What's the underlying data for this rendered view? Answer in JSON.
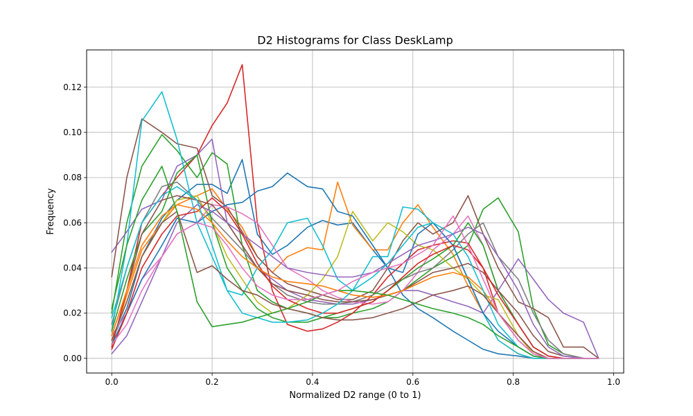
{
  "chart_data": {
    "type": "line",
    "title": "D2 Histograms for Class DeskLamp",
    "xlabel": "Normalized D2 range (0 to 1)",
    "ylabel": "Frequency",
    "xlim": [
      -0.05,
      1.02
    ],
    "ylim": [
      -0.0065,
      0.1365
    ],
    "grid": true,
    "x_ticks": [
      0.0,
      0.2,
      0.4,
      0.6,
      0.8,
      1.0
    ],
    "x_tick_labels": [
      "0.0",
      "0.2",
      "0.4",
      "0.6",
      "0.8",
      "1.0"
    ],
    "y_ticks": [
      0.0,
      0.02,
      0.04,
      0.06,
      0.08,
      0.1,
      0.12
    ],
    "y_tick_labels": [
      "0.00",
      "0.02",
      "0.04",
      "0.06",
      "0.08",
      "0.10",
      "0.12"
    ],
    "x": [
      0.0,
      0.03,
      0.06,
      0.1,
      0.13,
      0.17,
      0.2,
      0.23,
      0.26,
      0.29,
      0.32,
      0.35,
      0.39,
      0.42,
      0.45,
      0.48,
      0.52,
      0.55,
      0.58,
      0.61,
      0.64,
      0.68,
      0.71,
      0.74,
      0.77,
      0.81,
      0.84,
      0.87,
      0.9,
      0.94,
      0.97
    ],
    "series": [
      {
        "color": "#1f77b4",
        "values": [
          0.008,
          0.022,
          0.045,
          0.062,
          0.07,
          0.077,
          0.077,
          0.073,
          0.088,
          0.055,
          0.046,
          0.05,
          0.058,
          0.061,
          0.059,
          0.06,
          0.048,
          0.04,
          0.028,
          0.022,
          0.018,
          0.012,
          0.008,
          0.004,
          0.002,
          0.001,
          0.0,
          0.0,
          0.0,
          0.0,
          0.0
        ]
      },
      {
        "color": "#ff7f0e",
        "values": [
          0.006,
          0.028,
          0.048,
          0.06,
          0.068,
          0.072,
          0.075,
          0.066,
          0.058,
          0.045,
          0.038,
          0.045,
          0.049,
          0.048,
          0.078,
          0.059,
          0.048,
          0.048,
          0.06,
          0.068,
          0.058,
          0.046,
          0.032,
          0.02,
          0.008,
          0.002,
          0.0,
          0.0,
          0.0,
          0.0,
          0.0
        ]
      },
      {
        "color": "#2ca02c",
        "values": [
          0.02,
          0.06,
          0.085,
          0.099,
          0.092,
          0.08,
          0.091,
          0.086,
          0.05,
          0.03,
          0.025,
          0.022,
          0.02,
          0.018,
          0.018,
          0.02,
          0.022,
          0.025,
          0.03,
          0.035,
          0.04,
          0.045,
          0.05,
          0.066,
          0.071,
          0.056,
          0.022,
          0.006,
          0.002,
          0.0,
          0.0
        ]
      },
      {
        "color": "#d62728",
        "values": [
          0.005,
          0.03,
          0.06,
          0.072,
          0.08,
          0.09,
          0.103,
          0.113,
          0.13,
          0.06,
          0.03,
          0.015,
          0.012,
          0.013,
          0.016,
          0.02,
          0.028,
          0.036,
          0.042,
          0.048,
          0.05,
          0.052,
          0.051,
          0.04,
          0.02,
          0.008,
          0.002,
          0.0,
          0.0,
          0.0,
          0.0
        ]
      },
      {
        "color": "#9467bd",
        "values": [
          0.047,
          0.056,
          0.066,
          0.07,
          0.085,
          0.09,
          0.097,
          0.06,
          0.05,
          0.04,
          0.035,
          0.03,
          0.026,
          0.025,
          0.024,
          0.024,
          0.026,
          0.028,
          0.03,
          0.03,
          0.028,
          0.025,
          0.023,
          0.02,
          0.03,
          0.044,
          0.035,
          0.026,
          0.02,
          0.016,
          0.0
        ]
      },
      {
        "color": "#8c564b",
        "values": [
          0.036,
          0.08,
          0.106,
          0.1,
          0.095,
          0.093,
          0.072,
          0.067,
          0.056,
          0.045,
          0.038,
          0.033,
          0.03,
          0.028,
          0.026,
          0.026,
          0.03,
          0.04,
          0.052,
          0.06,
          0.055,
          0.06,
          0.072,
          0.055,
          0.04,
          0.025,
          0.022,
          0.018,
          0.005,
          0.005,
          0.0
        ]
      },
      {
        "color": "#e377c2",
        "values": [
          0.01,
          0.02,
          0.035,
          0.045,
          0.055,
          0.06,
          0.068,
          0.067,
          0.064,
          0.06,
          0.05,
          0.04,
          0.035,
          0.03,
          0.027,
          0.025,
          0.024,
          0.025,
          0.03,
          0.038,
          0.048,
          0.055,
          0.063,
          0.05,
          0.03,
          0.015,
          0.005,
          0.001,
          0.0,
          0.0,
          0.0
        ]
      },
      {
        "color": "#7f7f7f",
        "values": [
          0.015,
          0.04,
          0.06,
          0.076,
          0.078,
          0.07,
          0.062,
          0.055,
          0.048,
          0.04,
          0.033,
          0.028,
          0.025,
          0.024,
          0.024,
          0.025,
          0.028,
          0.032,
          0.035,
          0.038,
          0.04,
          0.048,
          0.055,
          0.06,
          0.045,
          0.035,
          0.02,
          0.008,
          0.002,
          0.0,
          0.0
        ]
      },
      {
        "color": "#bcbd22",
        "values": [
          0.008,
          0.025,
          0.045,
          0.06,
          0.07,
          0.072,
          0.06,
          0.045,
          0.035,
          0.025,
          0.02,
          0.022,
          0.028,
          0.035,
          0.045,
          0.065,
          0.052,
          0.06,
          0.056,
          0.05,
          0.048,
          0.04,
          0.035,
          0.028,
          0.026,
          0.01,
          0.002,
          0.0,
          0.0,
          0.0,
          0.0
        ]
      },
      {
        "color": "#17becf",
        "values": [
          0.012,
          0.05,
          0.105,
          0.118,
          0.097,
          0.06,
          0.045,
          0.03,
          0.028,
          0.04,
          0.048,
          0.06,
          0.062,
          0.05,
          0.035,
          0.03,
          0.045,
          0.045,
          0.067,
          0.066,
          0.06,
          0.05,
          0.035,
          0.02,
          0.008,
          0.002,
          0.0,
          0.0,
          0.0,
          0.0,
          0.0
        ]
      },
      {
        "color": "#1f77b4",
        "values": [
          0.006,
          0.02,
          0.035,
          0.05,
          0.062,
          0.06,
          0.065,
          0.068,
          0.069,
          0.074,
          0.076,
          0.082,
          0.076,
          0.075,
          0.065,
          0.063,
          0.05,
          0.04,
          0.038,
          0.055,
          0.06,
          0.05,
          0.035,
          0.02,
          0.012,
          0.005,
          0.001,
          0.0,
          0.0,
          0.0,
          0.0
        ]
      },
      {
        "color": "#2ca02c",
        "values": [
          0.012,
          0.035,
          0.055,
          0.065,
          0.082,
          0.09,
          0.06,
          0.04,
          0.03,
          0.022,
          0.018,
          0.016,
          0.016,
          0.018,
          0.02,
          0.022,
          0.025,
          0.03,
          0.035,
          0.04,
          0.044,
          0.05,
          0.06,
          0.05,
          0.03,
          0.015,
          0.005,
          0.001,
          0.0,
          0.0,
          0.0
        ]
      },
      {
        "color": "#8c564b",
        "values": [
          0.01,
          0.03,
          0.055,
          0.07,
          0.072,
          0.07,
          0.068,
          0.06,
          0.05,
          0.04,
          0.033,
          0.03,
          0.028,
          0.026,
          0.025,
          0.025,
          0.026,
          0.028,
          0.03,
          0.034,
          0.038,
          0.04,
          0.042,
          0.038,
          0.03,
          0.02,
          0.01,
          0.003,
          0.001,
          0.0,
          0.0
        ]
      },
      {
        "color": "#9467bd",
        "values": [
          0.002,
          0.01,
          0.025,
          0.045,
          0.06,
          0.068,
          0.065,
          0.06,
          0.055,
          0.05,
          0.045,
          0.04,
          0.038,
          0.037,
          0.036,
          0.036,
          0.038,
          0.042,
          0.046,
          0.05,
          0.052,
          0.055,
          0.058,
          0.055,
          0.045,
          0.03,
          0.015,
          0.005,
          0.001,
          0.0,
          0.0
        ]
      },
      {
        "color": "#d62728",
        "values": [
          0.004,
          0.02,
          0.04,
          0.055,
          0.063,
          0.065,
          0.071,
          0.065,
          0.055,
          0.042,
          0.032,
          0.026,
          0.022,
          0.02,
          0.02,
          0.022,
          0.025,
          0.03,
          0.036,
          0.042,
          0.046,
          0.05,
          0.048,
          0.04,
          0.028,
          0.015,
          0.005,
          0.001,
          0.0,
          0.0,
          0.0
        ]
      },
      {
        "color": "#ff7f0e",
        "values": [
          0.01,
          0.03,
          0.05,
          0.063,
          0.068,
          0.066,
          0.06,
          0.052,
          0.045,
          0.04,
          0.036,
          0.034,
          0.033,
          0.032,
          0.03,
          0.028,
          0.027,
          0.028,
          0.03,
          0.033,
          0.036,
          0.038,
          0.036,
          0.03,
          0.02,
          0.01,
          0.003,
          0.0,
          0.0,
          0.0,
          0.0
        ]
      },
      {
        "color": "#17becf",
        "values": [
          0.018,
          0.04,
          0.06,
          0.072,
          0.076,
          0.07,
          0.05,
          0.03,
          0.02,
          0.018,
          0.016,
          0.016,
          0.017,
          0.02,
          0.024,
          0.03,
          0.036,
          0.042,
          0.05,
          0.058,
          0.06,
          0.055,
          0.045,
          0.03,
          0.015,
          0.005,
          0.001,
          0.0,
          0.0,
          0.0,
          0.0
        ]
      },
      {
        "color": "#8c564b",
        "values": [
          0.008,
          0.025,
          0.045,
          0.06,
          0.065,
          0.038,
          0.041,
          0.035,
          0.03,
          0.028,
          0.024,
          0.022,
          0.02,
          0.018,
          0.017,
          0.017,
          0.018,
          0.02,
          0.022,
          0.025,
          0.028,
          0.03,
          0.032,
          0.028,
          0.02,
          0.01,
          0.003,
          0.0,
          0.0,
          0.0,
          0.0
        ]
      },
      {
        "color": "#2ca02c",
        "values": [
          0.022,
          0.05,
          0.07,
          0.085,
          0.065,
          0.025,
          0.014,
          0.015,
          0.016,
          0.018,
          0.02,
          0.022,
          0.025,
          0.028,
          0.03,
          0.03,
          0.029,
          0.028,
          0.026,
          0.024,
          0.022,
          0.02,
          0.018,
          0.015,
          0.01,
          0.005,
          0.001,
          0.0,
          0.0,
          0.0,
          0.0
        ]
      },
      {
        "color": "#e377c2",
        "values": [
          0.006,
          0.015,
          0.03,
          0.045,
          0.055,
          0.06,
          0.058,
          0.05,
          0.04,
          0.032,
          0.028,
          0.026,
          0.026,
          0.028,
          0.03,
          0.034,
          0.038,
          0.04,
          0.042,
          0.046,
          0.05,
          0.063,
          0.05,
          0.035,
          0.02,
          0.008,
          0.002,
          0.0,
          0.0,
          0.0,
          0.0
        ]
      }
    ]
  }
}
